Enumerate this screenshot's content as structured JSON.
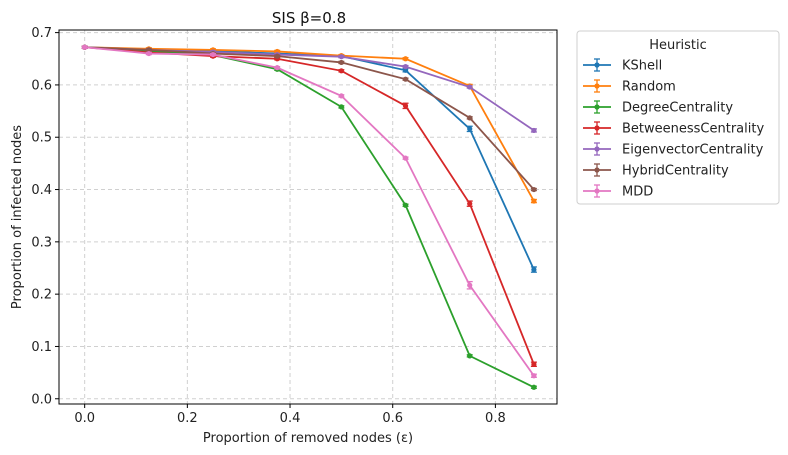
{
  "chart_data": {
    "type": "line",
    "title": "SIS β=0.8",
    "xlabel": "Proportion of removed nodes (ε)",
    "ylabel": "Proportion of infected nodes",
    "xlim": [
      -0.05,
      0.92
    ],
    "ylim": [
      -0.01,
      0.705
    ],
    "xticks": [
      0.0,
      0.2,
      0.4,
      0.6,
      0.8
    ],
    "xtick_labels": [
      "0.0",
      "0.2",
      "0.4",
      "0.6",
      "0.8"
    ],
    "yticks": [
      0.0,
      0.1,
      0.2,
      0.3,
      0.4,
      0.5,
      0.6,
      0.7
    ],
    "ytick_labels": [
      "0.0",
      "0.1",
      "0.2",
      "0.3",
      "0.4",
      "0.5",
      "0.6",
      "0.7"
    ],
    "grid": true,
    "legend_title": "Heuristic",
    "legend_position": "outside-right-top",
    "x": [
      0.0,
      0.125,
      0.25,
      0.375,
      0.5,
      0.625,
      0.75,
      0.875
    ],
    "series": [
      {
        "name": "KShell",
        "color": "#1f77b4",
        "values": [
          0.672,
          0.668,
          0.665,
          0.66,
          0.655,
          0.628,
          0.516,
          0.247
        ],
        "errors": [
          0.002,
          0.002,
          0.002,
          0.002,
          0.002,
          0.003,
          0.005,
          0.005
        ]
      },
      {
        "name": "Random",
        "color": "#ff7f0e",
        "values": [
          0.672,
          0.669,
          0.667,
          0.664,
          0.656,
          0.65,
          0.598,
          0.378
        ],
        "errors": [
          0.002,
          0.002,
          0.002,
          0.002,
          0.002,
          0.002,
          0.003,
          0.003
        ]
      },
      {
        "name": "DegreeCentrality",
        "color": "#2ca02c",
        "values": [
          0.672,
          0.665,
          0.657,
          0.63,
          0.558,
          0.37,
          0.082,
          0.022
        ],
        "errors": [
          0.002,
          0.002,
          0.002,
          0.002,
          0.002,
          0.002,
          0.002,
          0.002
        ]
      },
      {
        "name": "BetweenessCentrality",
        "color": "#d62728",
        "values": [
          0.672,
          0.662,
          0.655,
          0.65,
          0.627,
          0.56,
          0.373,
          0.066
        ],
        "errors": [
          0.002,
          0.002,
          0.002,
          0.002,
          0.002,
          0.005,
          0.005,
          0.004
        ]
      },
      {
        "name": "EigenvectorCentrality",
        "color": "#9467bd",
        "values": [
          0.672,
          0.667,
          0.663,
          0.658,
          0.654,
          0.635,
          0.596,
          0.513
        ],
        "errors": [
          0.002,
          0.002,
          0.002,
          0.002,
          0.002,
          0.002,
          0.002,
          0.003
        ]
      },
      {
        "name": "HybridCentrality",
        "color": "#8c564b",
        "values": [
          0.672,
          0.667,
          0.66,
          0.655,
          0.643,
          0.611,
          0.537,
          0.4
        ],
        "errors": [
          0.002,
          0.002,
          0.002,
          0.002,
          0.002,
          0.002,
          0.002,
          0.002
        ]
      },
      {
        "name": "MDD",
        "color": "#e377c2",
        "values": [
          0.672,
          0.66,
          0.658,
          0.633,
          0.579,
          0.46,
          0.217,
          0.044
        ],
        "errors": [
          0.002,
          0.002,
          0.002,
          0.002,
          0.002,
          0.002,
          0.007,
          0.003
        ]
      }
    ]
  }
}
